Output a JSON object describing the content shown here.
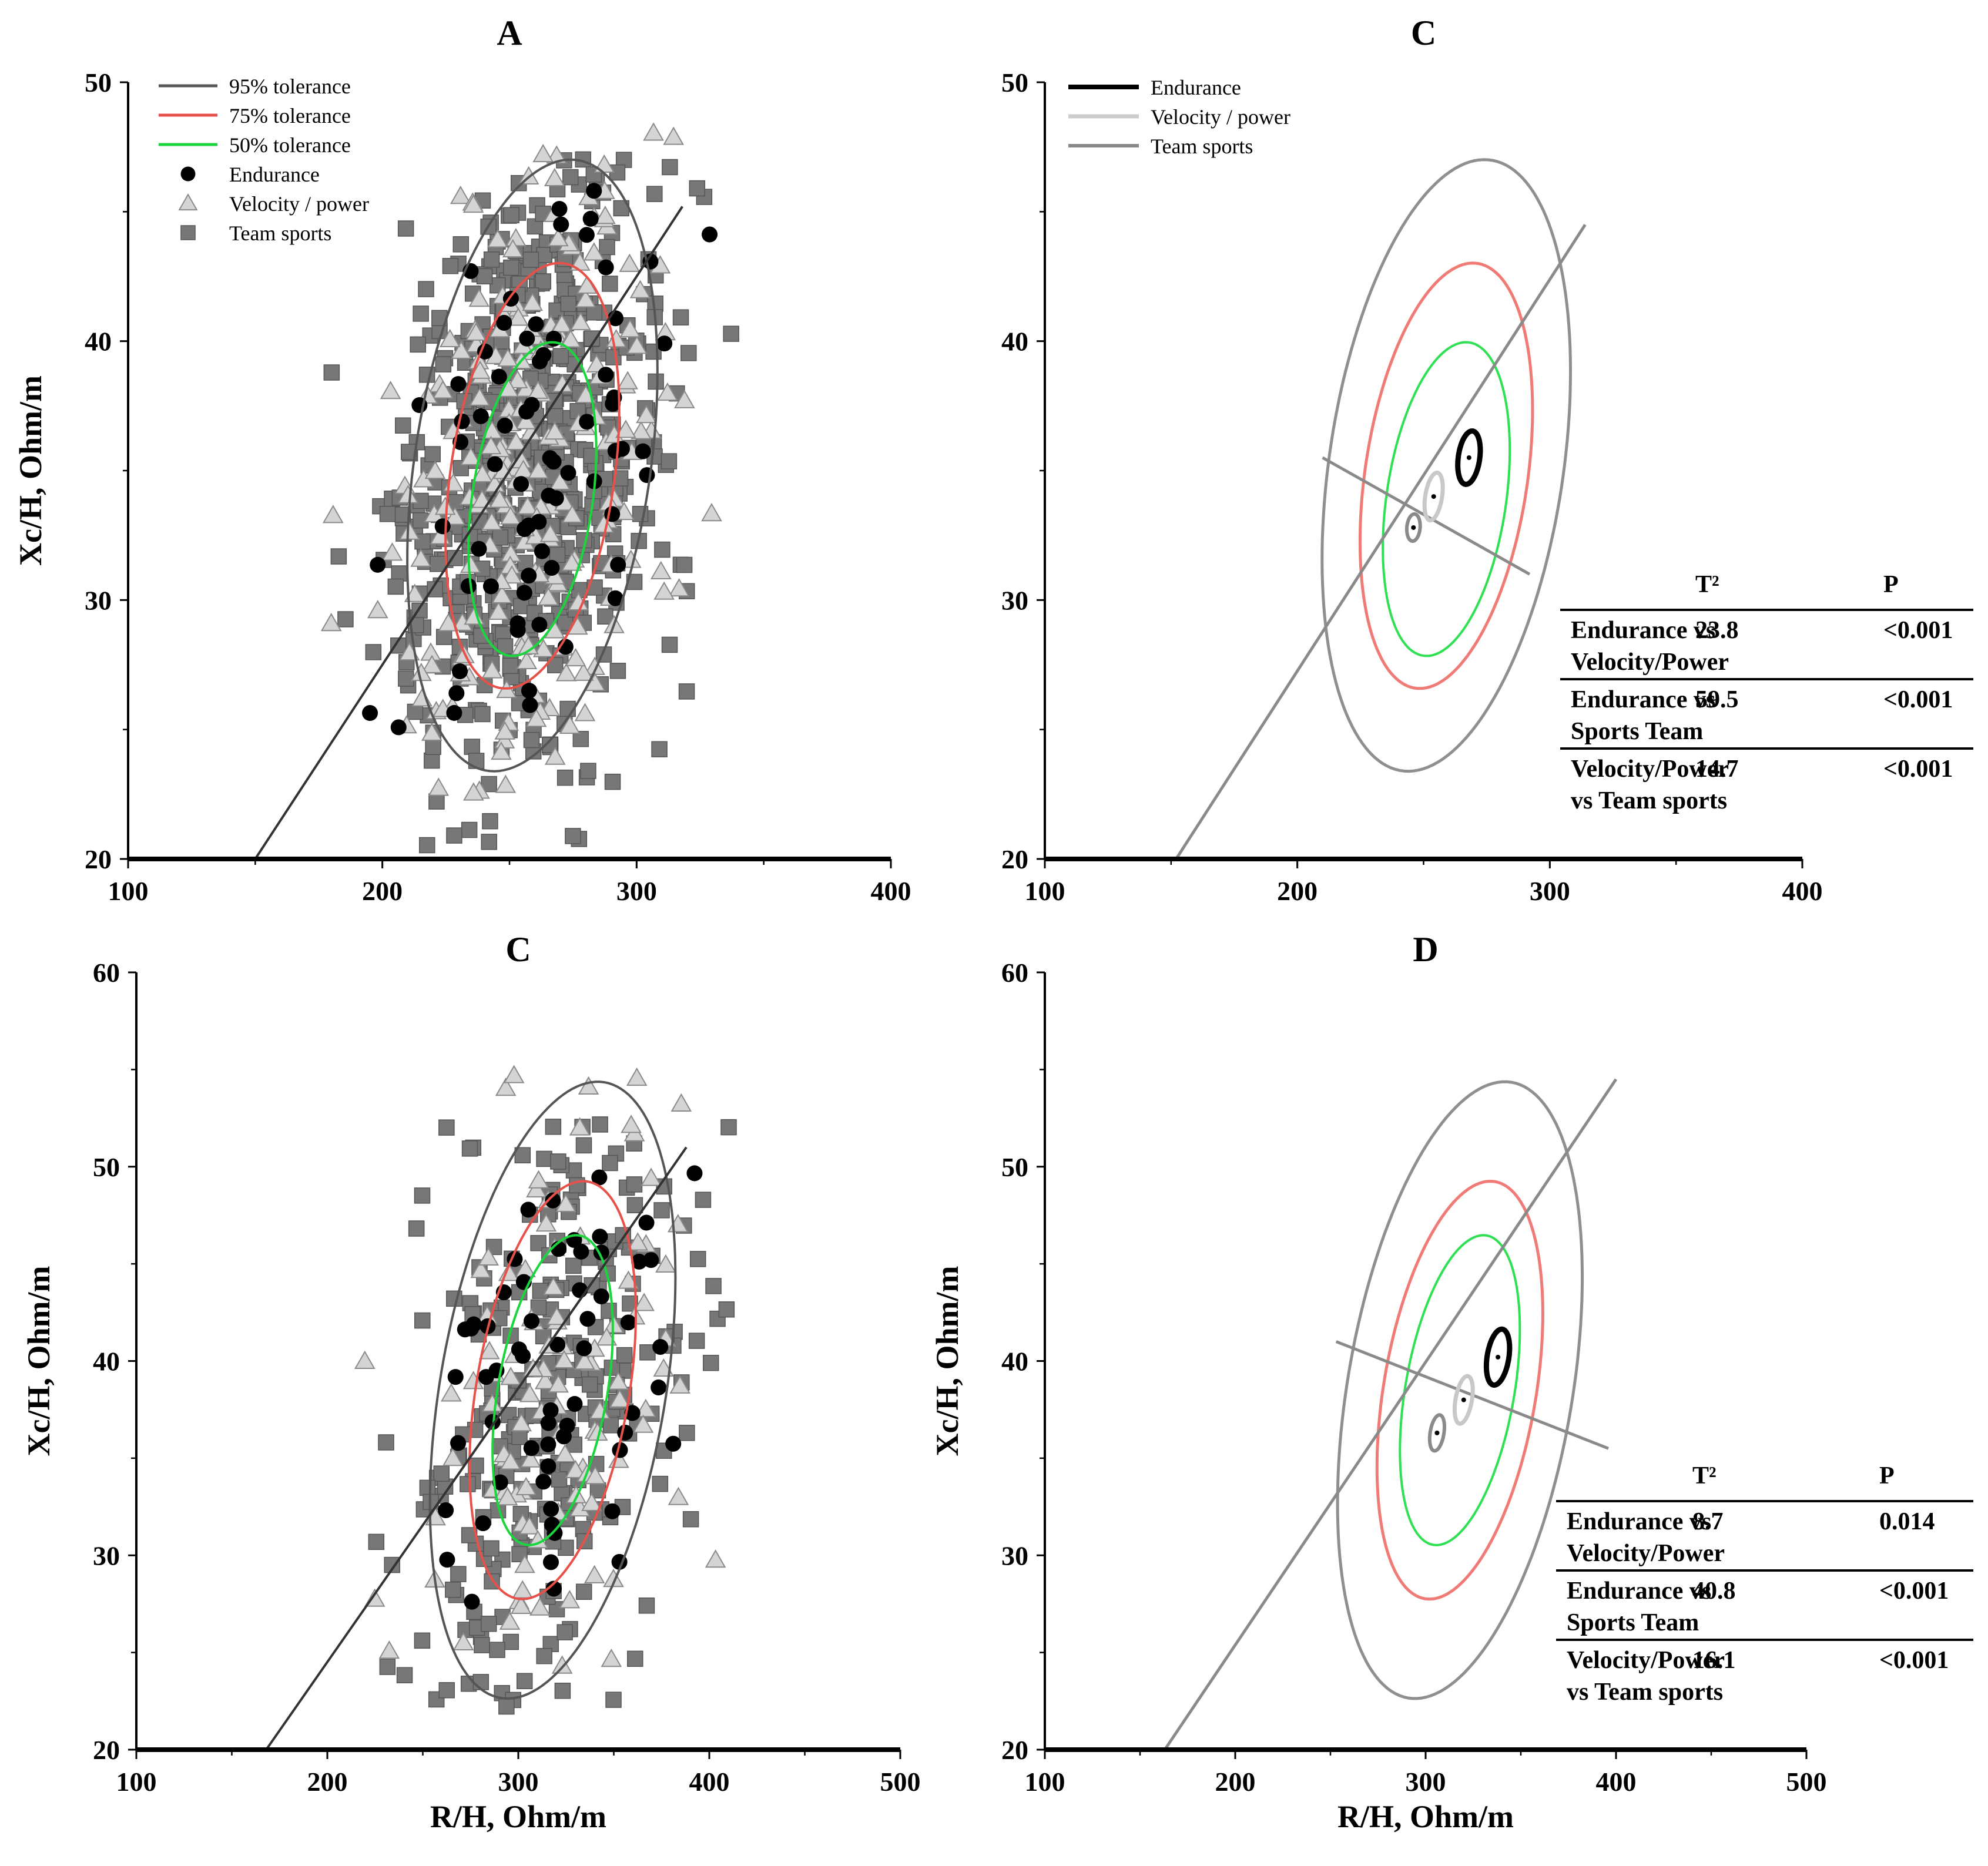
{
  "figure": {
    "panels": [
      {
        "id": "A",
        "title": "A",
        "xlabel": "",
        "ylabel": "Xc/H, Ohm/m",
        "xlim": [
          100,
          400
        ],
        "ylim": [
          20,
          50
        ],
        "xticks": [
          "100",
          "200",
          "300",
          "400"
        ],
        "yticks": [
          "20",
          "30",
          "40",
          "50"
        ],
        "legend": [
          "95% tolerance",
          "75% tolerance",
          "50% tolerance",
          "Endurance",
          "Velocity / power",
          "Team sports"
        ]
      },
      {
        "id": "C-top",
        "title": "C",
        "xlabel": "",
        "ylabel": "",
        "xlim": [
          100,
          400
        ],
        "ylim": [
          20,
          50
        ],
        "xticks": [
          "100",
          "200",
          "300",
          "400"
        ],
        "yticks": [
          "20",
          "30",
          "40",
          "50"
        ],
        "legend": [
          "Endurance",
          "Velocity / power",
          "Team sports"
        ],
        "table": {
          "headers": [
            "T²",
            "P"
          ],
          "rows": [
            {
              "label1": "Endurance vs",
              "label2": "Velocity/Power",
              "t2": "23.8",
              "p": "<0.001"
            },
            {
              "label1": "Endurance vs",
              "label2": "Sports Team",
              "t2": "59.5",
              "p": "<0.001"
            },
            {
              "label1": "Velocity/Power",
              "label2": "vs Team sports",
              "t2": "14.7",
              "p": "<0.001"
            }
          ]
        }
      },
      {
        "id": "C-bottom",
        "title": "C",
        "xlabel": "R/H, Ohm/m",
        "ylabel": "Xc/H, Ohm/m",
        "xlim": [
          100,
          500
        ],
        "ylim": [
          20,
          60
        ],
        "xticks": [
          "100",
          "200",
          "300",
          "400",
          "500"
        ],
        "yticks": [
          "20",
          "30",
          "40",
          "50",
          "60"
        ]
      },
      {
        "id": "D",
        "title": "D",
        "xlabel": "R/H, Ohm/m",
        "ylabel": "Xc/H, Ohm/m",
        "xlim": [
          100,
          500
        ],
        "ylim": [
          20,
          60
        ],
        "xticks": [
          "100",
          "200",
          "300",
          "400",
          "500"
        ],
        "yticks": [
          "20",
          "30",
          "40",
          "50",
          "60"
        ],
        "table": {
          "headers": [
            "T²",
            "P"
          ],
          "rows": [
            {
              "label1": "Endurance vs",
              "label2": "Velocity/Power",
              "t2": "8.7",
              "p": "0.014"
            },
            {
              "label1": "Endurance vs",
              "label2": "Sports Team",
              "t2": "40.8",
              "p": "<0.001"
            },
            {
              "label1": "Velocity/Power",
              "label2": "vs Team sports",
              "t2": "16.1",
              "p": "<0.001"
            }
          ]
        }
      }
    ]
  },
  "chart_data": [
    {
      "panel": "A",
      "type": "scatter",
      "title": "A",
      "xlabel": "",
      "ylabel": "Xc/H, Ohm/m",
      "xlim": [
        100,
        400
      ],
      "ylim": [
        20,
        50
      ],
      "legend_position": "top-left",
      "colors": {
        "tol95": "#555555",
        "tol75": "#e8504a",
        "tol50": "#19d63c",
        "endurance": "#000000",
        "velocity": "#cfcfcf",
        "team": "#7a7a7a"
      },
      "tolerance_ellipses": [
        {
          "name": "95% tolerance",
          "center": [
            259,
            35.2
          ],
          "semi_major_xc": 11.5,
          "semi_minor_r": 49,
          "angle_deg": 67
        },
        {
          "name": "75% tolerance",
          "center": [
            259,
            34.8
          ],
          "semi_major_xc": 8,
          "semi_minor_r": 34,
          "angle_deg": 67
        },
        {
          "name": "50% tolerance",
          "center": [
            259,
            33.9
          ],
          "semi_major_xc": 5.9,
          "semi_minor_r": 25,
          "angle_deg": 67
        }
      ],
      "regression_line": [
        [
          150,
          20
        ],
        [
          318,
          45.2
        ]
      ],
      "series": [
        {
          "name": "Endurance",
          "marker": "circle",
          "x_range": [
            185,
            345
          ],
          "y_range": [
            24,
            48
          ],
          "n": 70
        },
        {
          "name": "Velocity / power",
          "marker": "triangle",
          "x_range": [
            175,
            365
          ],
          "y_range": [
            22,
            48.5
          ],
          "n": 240
        },
        {
          "name": "Team sports",
          "marker": "square",
          "x_range": [
            165,
            370
          ],
          "y_range": [
            20.5,
            47.5
          ],
          "n": 620
        }
      ]
    },
    {
      "panel": "C-top",
      "type": "line",
      "title": "C",
      "xlim": [
        100,
        400
      ],
      "ylim": [
        20,
        50
      ],
      "legend_position": "top-left",
      "tolerance_ellipses": [
        {
          "name": "95% tolerance",
          "center": [
            259,
            35.2
          ],
          "semi_major_xc": 11.5,
          "semi_minor_r": 49,
          "angle_deg": 67
        },
        {
          "name": "75% tolerance",
          "center": [
            259,
            34.8
          ],
          "semi_major_xc": 8,
          "semi_minor_r": 34,
          "angle_deg": 67
        },
        {
          "name": "50% tolerance",
          "center": [
            259,
            33.9
          ],
          "semi_major_xc": 5.9,
          "semi_minor_r": 25,
          "angle_deg": 67
        }
      ],
      "confidence_ellipses": [
        {
          "name": "Endurance",
          "center": [
            268,
            35.5
          ],
          "semi_major_xc": 1.0,
          "semi_minor_r": 4.5,
          "angle_deg": 67
        },
        {
          "name": "Velocity / power",
          "center": [
            254,
            34
          ],
          "semi_major_xc": 0.9,
          "semi_minor_r": 3.5,
          "angle_deg": 67
        },
        {
          "name": "Team sports",
          "center": [
            246,
            32.8
          ],
          "semi_major_xc": 0.5,
          "semi_minor_r": 2.8,
          "angle_deg": 67
        }
      ],
      "major_axis": [
        [
          152,
          20
        ],
        [
          314,
          44.5
        ]
      ],
      "minor_axis": [
        [
          210,
          35.5
        ],
        [
          292,
          31
        ]
      ]
    },
    {
      "panel": "C-bottom",
      "type": "scatter",
      "title": "C",
      "xlabel": "R/H, Ohm/m",
      "ylabel": "Xc/H, Ohm/m",
      "xlim": [
        100,
        500
      ],
      "ylim": [
        20,
        60
      ],
      "tolerance_ellipses": [
        {
          "name": "95% tolerance",
          "center": [
            318,
            38.5
          ],
          "semi_major_xc": 15.5,
          "semi_minor_r": 62,
          "angle_deg": 66
        },
        {
          "name": "75% tolerance",
          "center": [
            318,
            38.5
          ],
          "semi_major_xc": 10.5,
          "semi_minor_r": 42,
          "angle_deg": 66
        },
        {
          "name": "50% tolerance",
          "center": [
            318,
            38.5
          ],
          "semi_major_xc": 7.8,
          "semi_minor_r": 30,
          "angle_deg": 66
        }
      ],
      "regression_line": [
        [
          168,
          20
        ],
        [
          388,
          51
        ]
      ],
      "series": [
        {
          "name": "Endurance",
          "marker": "circle",
          "x_range": [
            245,
            450
          ],
          "y_range": [
            27,
            50.5
          ],
          "n": 60
        },
        {
          "name": "Velocity / power",
          "marker": "triangle",
          "x_range": [
            210,
            425
          ],
          "y_range": [
            24,
            57.5
          ],
          "n": 110
        },
        {
          "name": "Team sports",
          "marker": "square",
          "x_range": [
            210,
            432
          ],
          "y_range": [
            22,
            52.5
          ],
          "n": 260
        }
      ]
    },
    {
      "panel": "D",
      "type": "line",
      "title": "D",
      "xlabel": "R/H, Ohm/m",
      "ylabel": "Xc/H, Ohm/m",
      "xlim": [
        100,
        500
      ],
      "ylim": [
        20,
        60
      ],
      "tolerance_ellipses": [
        {
          "name": "95% tolerance",
          "center": [
            318,
            38.5
          ],
          "semi_major_xc": 15.5,
          "semi_minor_r": 62,
          "angle_deg": 66
        },
        {
          "name": "75% tolerance",
          "center": [
            318,
            38.5
          ],
          "semi_major_xc": 10.5,
          "semi_minor_r": 42,
          "angle_deg": 66
        },
        {
          "name": "50% tolerance",
          "center": [
            318,
            38.5
          ],
          "semi_major_xc": 7.8,
          "semi_minor_r": 30,
          "angle_deg": 66
        }
      ],
      "confidence_ellipses": [
        {
          "name": "Endurance",
          "center": [
            338,
            40.2
          ],
          "semi_major_xc": 1.4,
          "semi_minor_r": 6,
          "angle_deg": 66
        },
        {
          "name": "Velocity / power",
          "center": [
            320,
            38
          ],
          "semi_major_xc": 1.2,
          "semi_minor_r": 4.5,
          "angle_deg": 66
        },
        {
          "name": "Team sports",
          "center": [
            306,
            36.3
          ],
          "semi_major_xc": 0.9,
          "semi_minor_r": 3.8,
          "angle_deg": 66
        }
      ],
      "major_axis": [
        [
          163,
          20
        ],
        [
          400,
          54.5
        ]
      ],
      "minor_axis": [
        [
          253,
          41
        ],
        [
          396,
          35.5
        ]
      ]
    }
  ]
}
